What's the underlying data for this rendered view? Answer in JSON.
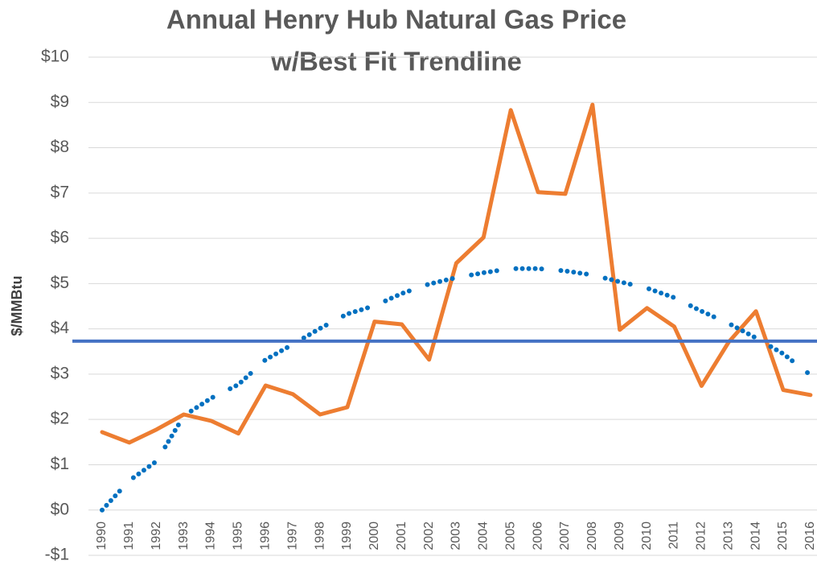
{
  "chart_data": {
    "type": "line",
    "title": "Annual Henry Hub Natural Gas Price",
    "subtitle": "w/Best Fit Trendline",
    "y_label": "$/MMBtu",
    "categories": [
      "1990",
      "1991",
      "1992",
      "1993",
      "1994",
      "1995",
      "1996",
      "1997",
      "1998",
      "1999",
      "2000",
      "2001",
      "2002",
      "2003",
      "2004",
      "2005",
      "2006",
      "2007",
      "2008",
      "2009",
      "2010",
      "2011",
      "2012",
      "2013",
      "2014",
      "2015",
      "2016"
    ],
    "series": [
      {
        "color": "#ed7d31",
        "style": "solid",
        "values": [
          1.72,
          1.49,
          1.78,
          2.11,
          1.97,
          1.69,
          2.75,
          2.56,
          2.11,
          2.27,
          4.16,
          4.1,
          3.32,
          5.45,
          6.02,
          8.83,
          7.02,
          6.98,
          8.95,
          3.98,
          4.46,
          4.05,
          2.74,
          3.71,
          4.39,
          2.65,
          2.54
        ]
      },
      {
        "color": "#0070c0",
        "style": "dotted",
        "values": [
          0,
          0.65,
          1.08,
          2.08,
          2.47,
          2.77,
          3.32,
          3.66,
          4.01,
          4.33,
          4.51,
          4.78,
          4.99,
          5.13,
          5.24,
          5.33,
          5.33,
          5.28,
          5.19,
          5.04,
          4.9,
          4.69,
          4.39,
          4.12,
          3.8,
          3.45,
          2.98
        ]
      }
    ],
    "hline": {
      "value": 3.73,
      "color": "#4472c4"
    },
    "ylim": [
      -1,
      10
    ],
    "yticks": [
      {
        "value": -1,
        "label": "-$1"
      },
      {
        "value": 0,
        "label": "$0"
      },
      {
        "value": 1,
        "label": "$1"
      },
      {
        "value": 2,
        "label": "$2"
      },
      {
        "value": 3,
        "label": "$3"
      },
      {
        "value": 4,
        "label": "$4"
      },
      {
        "value": 5,
        "label": "$5"
      },
      {
        "value": 6,
        "label": "$6"
      },
      {
        "value": 7,
        "label": "$7"
      },
      {
        "value": 8,
        "label": "$8"
      },
      {
        "value": 9,
        "label": "$9"
      },
      {
        "value": 10,
        "label": "$10"
      }
    ],
    "grid": true
  }
}
